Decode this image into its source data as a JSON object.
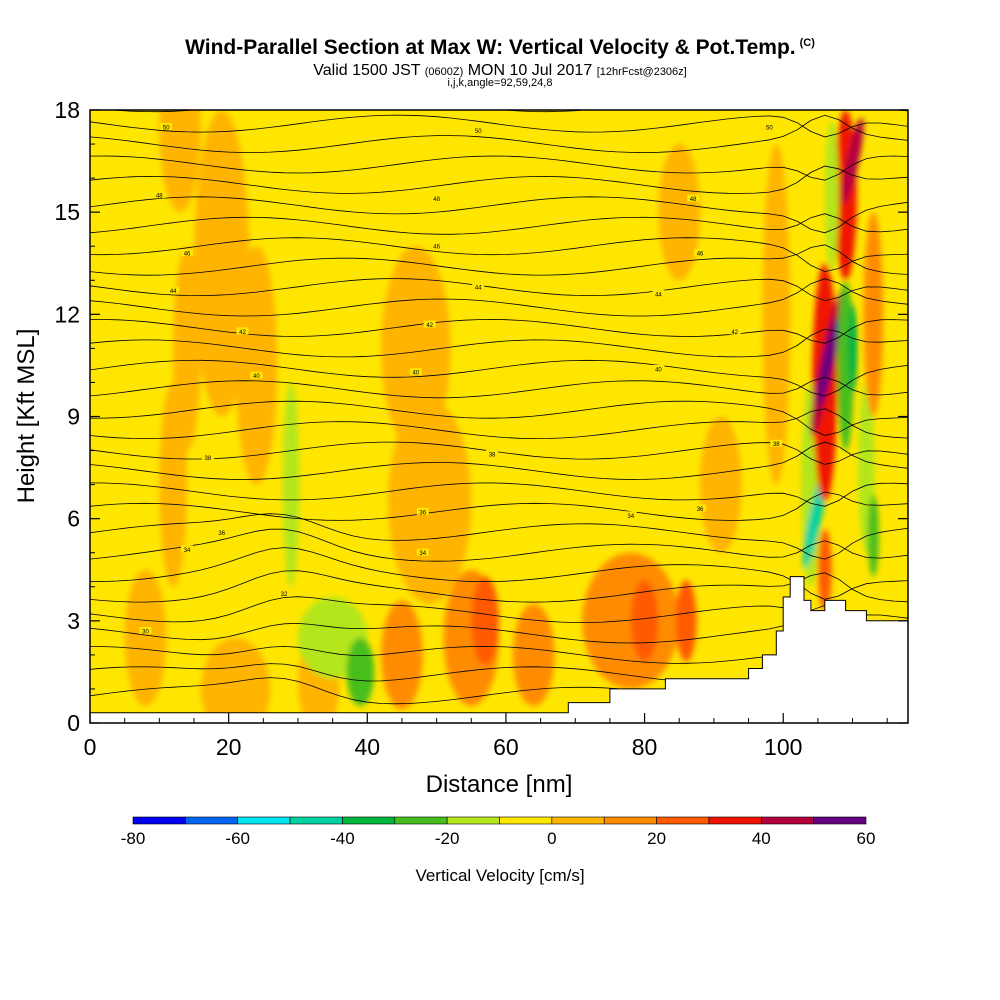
{
  "header": {
    "title": "Wind-Parallel Section at Max W: Vertical Velocity & Pot.Temp.",
    "copyright_mark": "(C)",
    "valid_prefix": "Valid 1500 JST",
    "valid_utc": "(0600Z)",
    "valid_date": "MON 10 Jul 2017",
    "forecast_info": "[12hrFcst@2306z]",
    "indices": "i,j,k,angle=92,59,24,8"
  },
  "chart_data": {
    "type": "heatmap",
    "title": "Wind-Parallel Section at Max W: Vertical Velocity & Pot.Temp.",
    "xlabel": "Distance [nm]",
    "ylabel": "Height [Kft MSL]",
    "xlim": [
      0,
      118
    ],
    "ylim": [
      0,
      18
    ],
    "x_ticks": [
      0,
      20,
      40,
      60,
      80,
      100
    ],
    "y_ticks": [
      0,
      3,
      6,
      9,
      12,
      15,
      18
    ],
    "grid": false,
    "colorbar": {
      "label": "Vertical Velocity [cm/s]",
      "levels": [
        -80,
        -70,
        -60,
        -50,
        -40,
        -30,
        -20,
        -10,
        0,
        10,
        20,
        30,
        40,
        50,
        60
      ],
      "tick_labels": [
        "-80",
        "-60",
        "-40",
        "-20",
        "0",
        "20",
        "40",
        "60"
      ],
      "colors": [
        "#0000f0",
        "#0064f0",
        "#00e6f0",
        "#00d2a0",
        "#00b43c",
        "#46be1e",
        "#b4e61e",
        "#ffe600",
        "#ffb400",
        "#ff8c00",
        "#ff5a00",
        "#f01400",
        "#b4003c",
        "#640082"
      ]
    },
    "theta_labels": [
      {
        "x": 11,
        "y": 17.5,
        "text": "50"
      },
      {
        "x": 56,
        "y": 17.4,
        "text": "50"
      },
      {
        "x": 98,
        "y": 17.5,
        "text": "50"
      },
      {
        "x": 10,
        "y": 15.5,
        "text": "48"
      },
      {
        "x": 50,
        "y": 15.4,
        "text": "48"
      },
      {
        "x": 87,
        "y": 15.4,
        "text": "48"
      },
      {
        "x": 14,
        "y": 13.8,
        "text": "46"
      },
      {
        "x": 50,
        "y": 14.0,
        "text": "46"
      },
      {
        "x": 88,
        "y": 13.8,
        "text": "46"
      },
      {
        "x": 12,
        "y": 12.7,
        "text": "44"
      },
      {
        "x": 56,
        "y": 12.8,
        "text": "44"
      },
      {
        "x": 82,
        "y": 12.6,
        "text": "44"
      },
      {
        "x": 22,
        "y": 11.5,
        "text": "42"
      },
      {
        "x": 49,
        "y": 11.7,
        "text": "42"
      },
      {
        "x": 93,
        "y": 11.5,
        "text": "42"
      },
      {
        "x": 24,
        "y": 10.2,
        "text": "40"
      },
      {
        "x": 47,
        "y": 10.3,
        "text": "40"
      },
      {
        "x": 82,
        "y": 10.4,
        "text": "40"
      },
      {
        "x": 17,
        "y": 7.8,
        "text": "38"
      },
      {
        "x": 58,
        "y": 7.9,
        "text": "38"
      },
      {
        "x": 99,
        "y": 8.2,
        "text": "38"
      },
      {
        "x": 48,
        "y": 6.2,
        "text": "36"
      },
      {
        "x": 88,
        "y": 6.3,
        "text": "36"
      },
      {
        "x": 19,
        "y": 5.6,
        "text": "36"
      },
      {
        "x": 78,
        "y": 6.1,
        "text": "34"
      },
      {
        "x": 48,
        "y": 5.0,
        "text": "34"
      },
      {
        "x": 14,
        "y": 5.1,
        "text": "34"
      },
      {
        "x": 28,
        "y": 3.8,
        "text": "32"
      },
      {
        "x": 8,
        "y": 2.7,
        "text": "30"
      }
    ],
    "terrain": [
      [
        0,
        0.3
      ],
      [
        69,
        0.3
      ],
      [
        69,
        0.6
      ],
      [
        75,
        0.6
      ],
      [
        75,
        1.0
      ],
      [
        83,
        1.0
      ],
      [
        83,
        1.3
      ],
      [
        95,
        1.3
      ],
      [
        95,
        1.6
      ],
      [
        97,
        1.6
      ],
      [
        97,
        2.0
      ],
      [
        99,
        2.0
      ],
      [
        99,
        2.7
      ],
      [
        100,
        2.7
      ],
      [
        100,
        3.7
      ],
      [
        101,
        3.7
      ],
      [
        101,
        4.3
      ],
      [
        103,
        4.3
      ],
      [
        103,
        3.6
      ],
      [
        104,
        3.6
      ],
      [
        104,
        3.3
      ],
      [
        106,
        3.3
      ],
      [
        106,
        3.6
      ],
      [
        109,
        3.6
      ],
      [
        109,
        3.3
      ],
      [
        112,
        3.3
      ],
      [
        112,
        3.0
      ],
      [
        118,
        3.0
      ]
    ]
  }
}
